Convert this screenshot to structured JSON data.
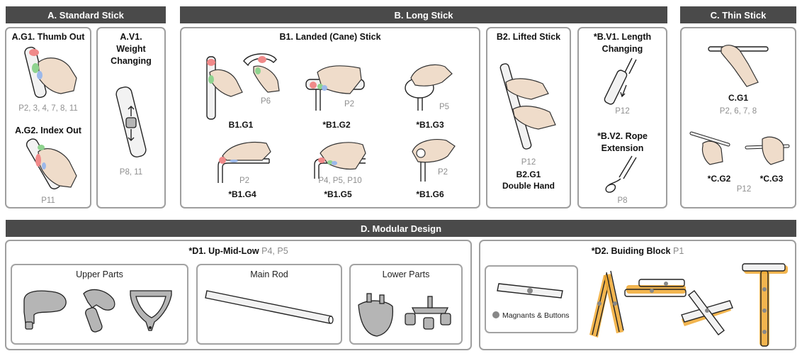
{
  "sections": {
    "a": "A. Standard Stick",
    "b": "B. Long Stick",
    "c": "C. Thin Stick",
    "d": "D. Modular Design"
  },
  "a_g1": {
    "title": "A.G1. Thumb Out",
    "participants": "P2, 3, 4, 7, 8, 11"
  },
  "a_g2": {
    "title": "A.G2. Index Out",
    "participants": "P11"
  },
  "a_v1": {
    "title_line1": "A.V1.",
    "title_line2": "Weight",
    "title_line3": "Changing",
    "participants": "P8, 11"
  },
  "b1": {
    "title": "B1. Landed (Cane) Stick",
    "g1": {
      "label": "B1.G1",
      "participants": "P6"
    },
    "g2": {
      "label": "*B1.G2",
      "participants": "P2"
    },
    "g3": {
      "label": "*B1.G3",
      "participants": "P5"
    },
    "g4": {
      "label": "*B1.G4",
      "participants": "P2"
    },
    "g5": {
      "label": "*B1.G5",
      "participants": "P4, P5, P10"
    },
    "g6": {
      "label": "*B1.G6",
      "participants": "P2"
    }
  },
  "b2": {
    "title": "B2. Lifted Stick",
    "participants": "P12",
    "label_line1": "B2.G1",
    "label_line2": "Double Hand"
  },
  "bv1": {
    "title_line1": "*B.V1. Length",
    "title_line2": "Changing",
    "participants": "P12"
  },
  "bv2": {
    "title_line1": "*B.V2. Rope",
    "title_line2": "Extension",
    "participants": "P8"
  },
  "c": {
    "g1": {
      "label": "C.G1",
      "participants": "P2, 6, 7, 8"
    },
    "g2": {
      "label": "*C.G2"
    },
    "g3": {
      "label": "*C.G3"
    },
    "participants_g2g3": "P12"
  },
  "d1": {
    "title": "*D1. Up-Mid-Low",
    "participants": "P4, P5",
    "upper": "Upper Parts",
    "main": "Main Rod",
    "lower": "Lower Parts"
  },
  "d2": {
    "title": "*D2. Buiding Block",
    "participants": "P1",
    "legend": "Magnants & Buttons"
  },
  "colors": {
    "header": "#4a4a4a",
    "border": "#9e9e9e",
    "skin": "#efdcca",
    "red_marker": "#f08a8a",
    "green_marker": "#8fd38f",
    "blue_marker": "#9bb8ea",
    "orange_block": "#f0a830"
  },
  "icons": [
    "hand-icon",
    "stick-icon",
    "weight-icon",
    "rope-icon",
    "magnet-dot-icon"
  ]
}
